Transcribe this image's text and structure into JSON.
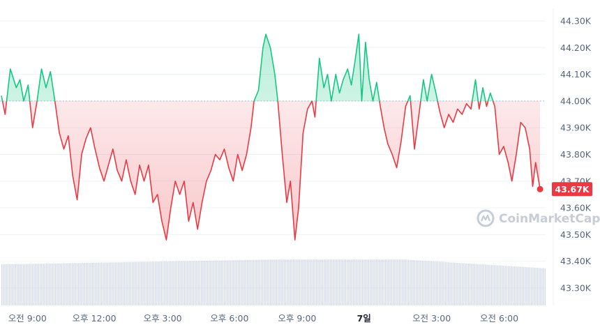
{
  "watermark": {
    "text": "CoinMarketCap",
    "icon": "coinmarketcap-logo-icon"
  },
  "colors": {
    "up": "#16c784",
    "down": "#ea3943",
    "grid": "#eff2f5",
    "baseline": "#a6b0c3",
    "volume": "#cfd6e4",
    "axis_text": "#58667e"
  },
  "chart_data": {
    "type": "line",
    "baseline": 44.0,
    "unit": "K",
    "ylim": [
      43.24,
      44.37
    ],
    "y_ticks": [
      "44.30K",
      "44.20K",
      "44.10K",
      "44.00K",
      "43.90K",
      "43.80K",
      "43.70K",
      "43.60K",
      "43.50K",
      "43.40K",
      "43.30K"
    ],
    "y_tick_values": [
      44.3,
      44.2,
      44.1,
      44.0,
      43.9,
      43.8,
      43.7,
      43.6,
      43.5,
      43.4,
      43.3
    ],
    "x_ticks": [
      {
        "label": "오전 9:00",
        "t": 3.5,
        "bold": false
      },
      {
        "label": "오후 12:00",
        "t": 12.5,
        "bold": false
      },
      {
        "label": "오후 3:00",
        "t": 21.7,
        "bold": false
      },
      {
        "label": "오후 6:00",
        "t": 30.7,
        "bold": false
      },
      {
        "label": "오후 9:00",
        "t": 39.8,
        "bold": false
      },
      {
        "label": "7일",
        "t": 48.8,
        "bold": true
      },
      {
        "label": "오전 3:00",
        "t": 57.9,
        "bold": false
      },
      {
        "label": "오전 6:00",
        "t": 67.0,
        "bold": false
      }
    ],
    "last_price_label": "43.67K",
    "last_price": 43.67,
    "series": [
      {
        "points": [
          [
            0,
            44.02
          ],
          [
            0.5,
            43.95
          ],
          [
            1.2,
            44.12
          ],
          [
            2.0,
            44.05
          ],
          [
            2.5,
            44.08
          ],
          [
            3.0,
            44.0
          ],
          [
            3.6,
            44.06
          ],
          [
            4.2,
            43.9
          ],
          [
            4.8,
            44.0
          ],
          [
            5.4,
            44.12
          ],
          [
            6.0,
            44.05
          ],
          [
            6.6,
            44.11
          ],
          [
            7.2,
            44.0
          ],
          [
            7.8,
            43.88
          ],
          [
            8.4,
            43.82
          ],
          [
            9.0,
            43.87
          ],
          [
            9.6,
            43.72
          ],
          [
            10.2,
            43.63
          ],
          [
            10.8,
            43.8
          ],
          [
            11.4,
            43.86
          ],
          [
            12.0,
            43.9
          ],
          [
            12.6,
            43.82
          ],
          [
            13.2,
            43.75
          ],
          [
            13.8,
            43.7
          ],
          [
            14.4,
            43.76
          ],
          [
            15.0,
            43.82
          ],
          [
            15.6,
            43.74
          ],
          [
            16.2,
            43.7
          ],
          [
            16.8,
            43.78
          ],
          [
            17.4,
            43.7
          ],
          [
            18.0,
            43.65
          ],
          [
            18.6,
            43.76
          ],
          [
            19.2,
            43.7
          ],
          [
            19.8,
            43.76
          ],
          [
            20.4,
            43.62
          ],
          [
            21.0,
            43.65
          ],
          [
            21.6,
            43.55
          ],
          [
            22.2,
            43.48
          ],
          [
            22.8,
            43.6
          ],
          [
            23.4,
            43.7
          ],
          [
            24.0,
            43.65
          ],
          [
            24.6,
            43.7
          ],
          [
            25.2,
            43.55
          ],
          [
            25.8,
            43.62
          ],
          [
            26.4,
            43.52
          ],
          [
            27.0,
            43.62
          ],
          [
            27.6,
            43.7
          ],
          [
            28.2,
            43.74
          ],
          [
            28.8,
            43.8
          ],
          [
            29.4,
            43.78
          ],
          [
            30.0,
            43.82
          ],
          [
            30.6,
            43.75
          ],
          [
            31.2,
            43.7
          ],
          [
            31.8,
            43.8
          ],
          [
            32.4,
            43.74
          ],
          [
            33.0,
            43.8
          ],
          [
            33.6,
            43.9
          ],
          [
            34.0,
            44.0
          ],
          [
            34.6,
            44.04
          ],
          [
            35.2,
            44.2
          ],
          [
            35.6,
            44.25
          ],
          [
            36.2,
            44.2
          ],
          [
            36.8,
            44.1
          ],
          [
            37.2,
            44.0
          ],
          [
            37.8,
            43.8
          ],
          [
            38.4,
            43.62
          ],
          [
            38.9,
            43.7
          ],
          [
            39.5,
            43.48
          ],
          [
            40.0,
            43.6
          ],
          [
            40.6,
            43.88
          ],
          [
            41.2,
            43.97
          ],
          [
            41.8,
            44.0
          ],
          [
            42.2,
            43.94
          ],
          [
            42.8,
            44.16
          ],
          [
            43.4,
            44.05
          ],
          [
            43.9,
            44.1
          ],
          [
            44.4,
            44.0
          ],
          [
            45.0,
            44.1
          ],
          [
            45.5,
            44.03
          ],
          [
            46.0,
            44.08
          ],
          [
            46.6,
            44.12
          ],
          [
            47.1,
            44.06
          ],
          [
            47.6,
            44.15
          ],
          [
            48.1,
            44.25
          ],
          [
            48.5,
            44.0
          ],
          [
            49.0,
            44.22
          ],
          [
            49.5,
            44.08
          ],
          [
            50.0,
            44.0
          ],
          [
            50.5,
            44.07
          ],
          [
            51.0,
            43.98
          ],
          [
            51.5,
            43.9
          ],
          [
            52.0,
            43.84
          ],
          [
            52.6,
            43.8
          ],
          [
            53.2,
            43.75
          ],
          [
            53.8,
            43.85
          ],
          [
            54.4,
            43.98
          ],
          [
            55.0,
            44.02
          ],
          [
            55.6,
            43.82
          ],
          [
            56.2,
            43.95
          ],
          [
            56.8,
            44.08
          ],
          [
            57.3,
            44.0
          ],
          [
            57.9,
            44.1
          ],
          [
            58.4,
            44.04
          ],
          [
            59.0,
            43.96
          ],
          [
            59.6,
            43.9
          ],
          [
            60.2,
            43.95
          ],
          [
            60.8,
            43.92
          ],
          [
            61.4,
            43.97
          ],
          [
            62.0,
            43.95
          ],
          [
            62.6,
            43.99
          ],
          [
            63.2,
            43.97
          ],
          [
            63.8,
            44.08
          ],
          [
            64.3,
            43.97
          ],
          [
            64.8,
            44.05
          ],
          [
            65.3,
            43.98
          ],
          [
            65.8,
            44.03
          ],
          [
            66.4,
            43.98
          ],
          [
            67.0,
            43.8
          ],
          [
            67.6,
            43.83
          ],
          [
            68.2,
            43.77
          ],
          [
            68.7,
            43.7
          ],
          [
            69.3,
            43.8
          ],
          [
            69.9,
            43.92
          ],
          [
            70.5,
            43.9
          ],
          [
            71.1,
            43.82
          ],
          [
            71.5,
            43.68
          ],
          [
            71.9,
            43.77
          ],
          [
            72.5,
            43.67
          ]
        ]
      }
    ],
    "volume": {
      "start_level": 0.42,
      "mid_level": 0.47,
      "end_level": 0.38
    }
  }
}
